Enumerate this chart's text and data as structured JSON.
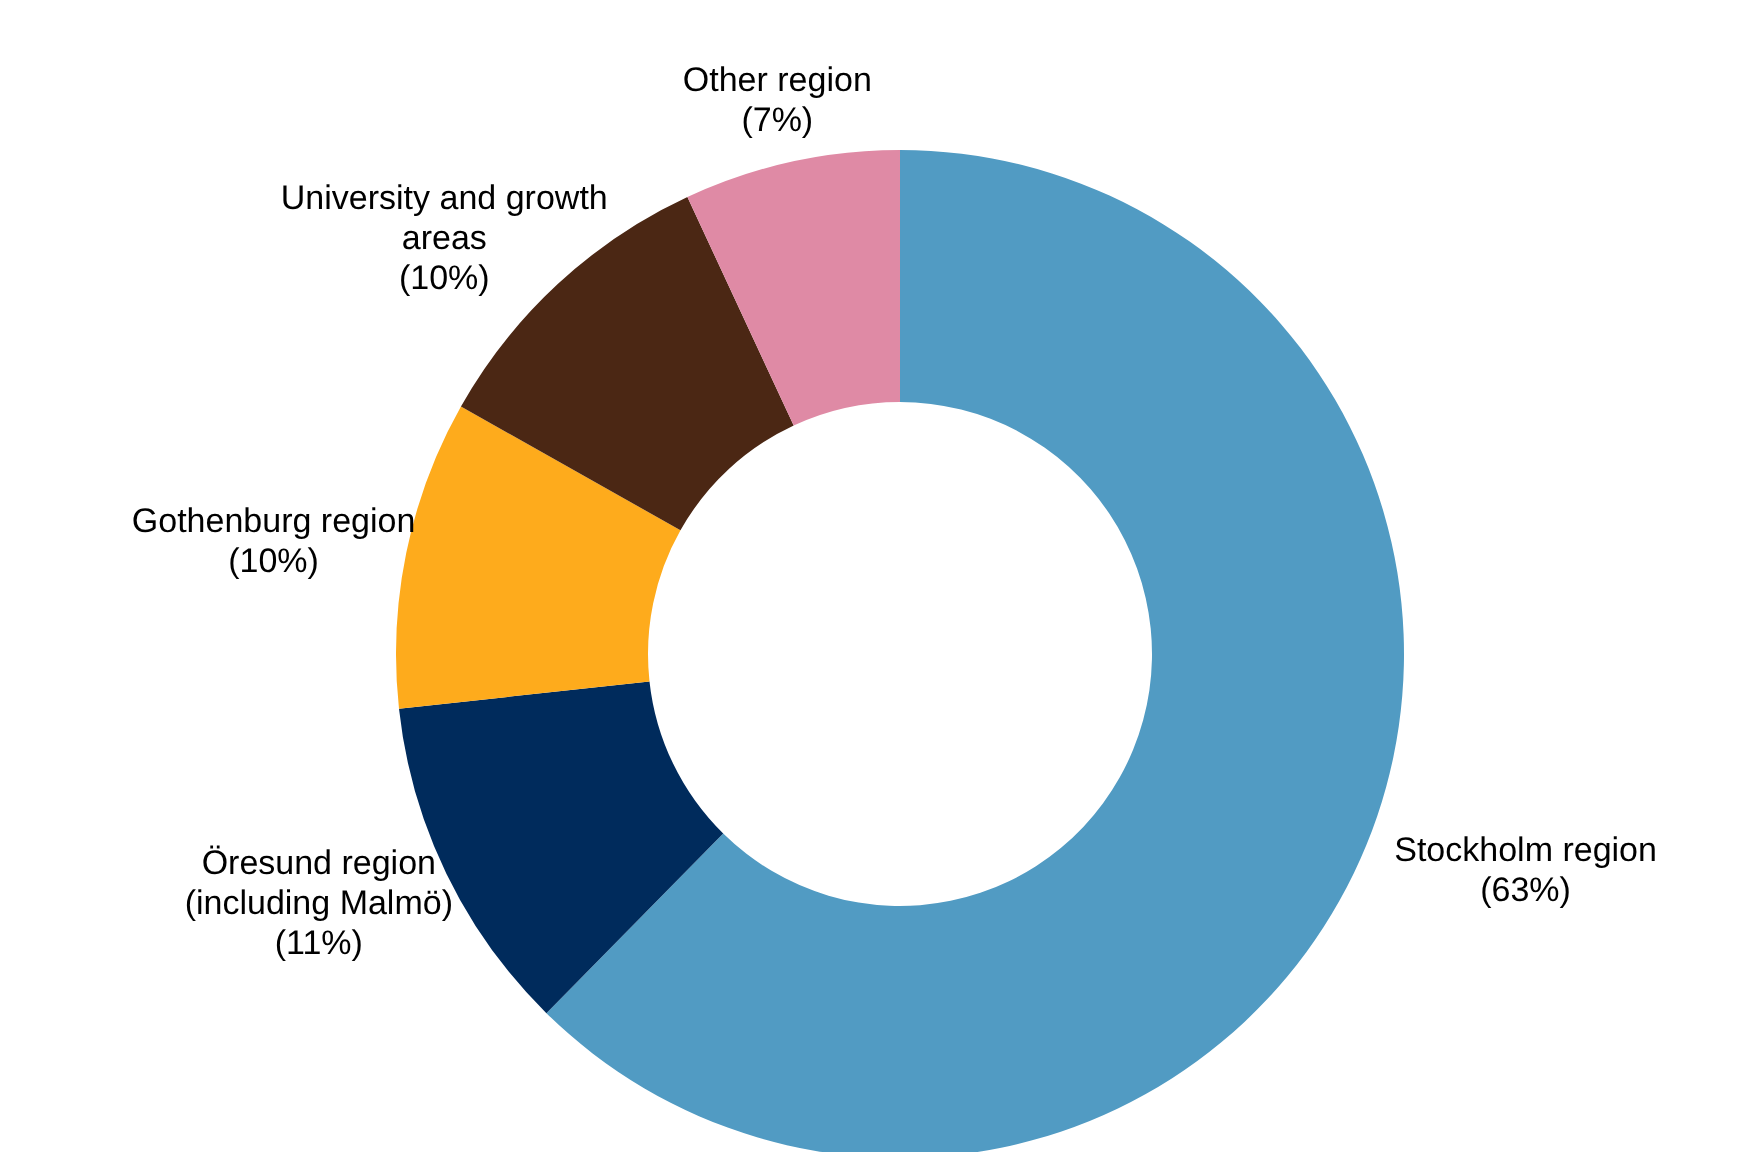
{
  "chart_data": {
    "type": "donut",
    "categories": [
      "Stockholm region",
      "Öresund region (including Malmö)",
      "Gothenburg region",
      "University and growth areas",
      "Other region"
    ],
    "values": [
      63,
      11,
      10,
      10,
      7
    ],
    "colors": [
      "#519bc3",
      "#002b5c",
      "#feab1c",
      "#4b2714",
      "#df8aa5"
    ],
    "value_labels": [
      "(63%)",
      "(11%)",
      "(10%)",
      "(10%)",
      "(7%)"
    ]
  }
}
